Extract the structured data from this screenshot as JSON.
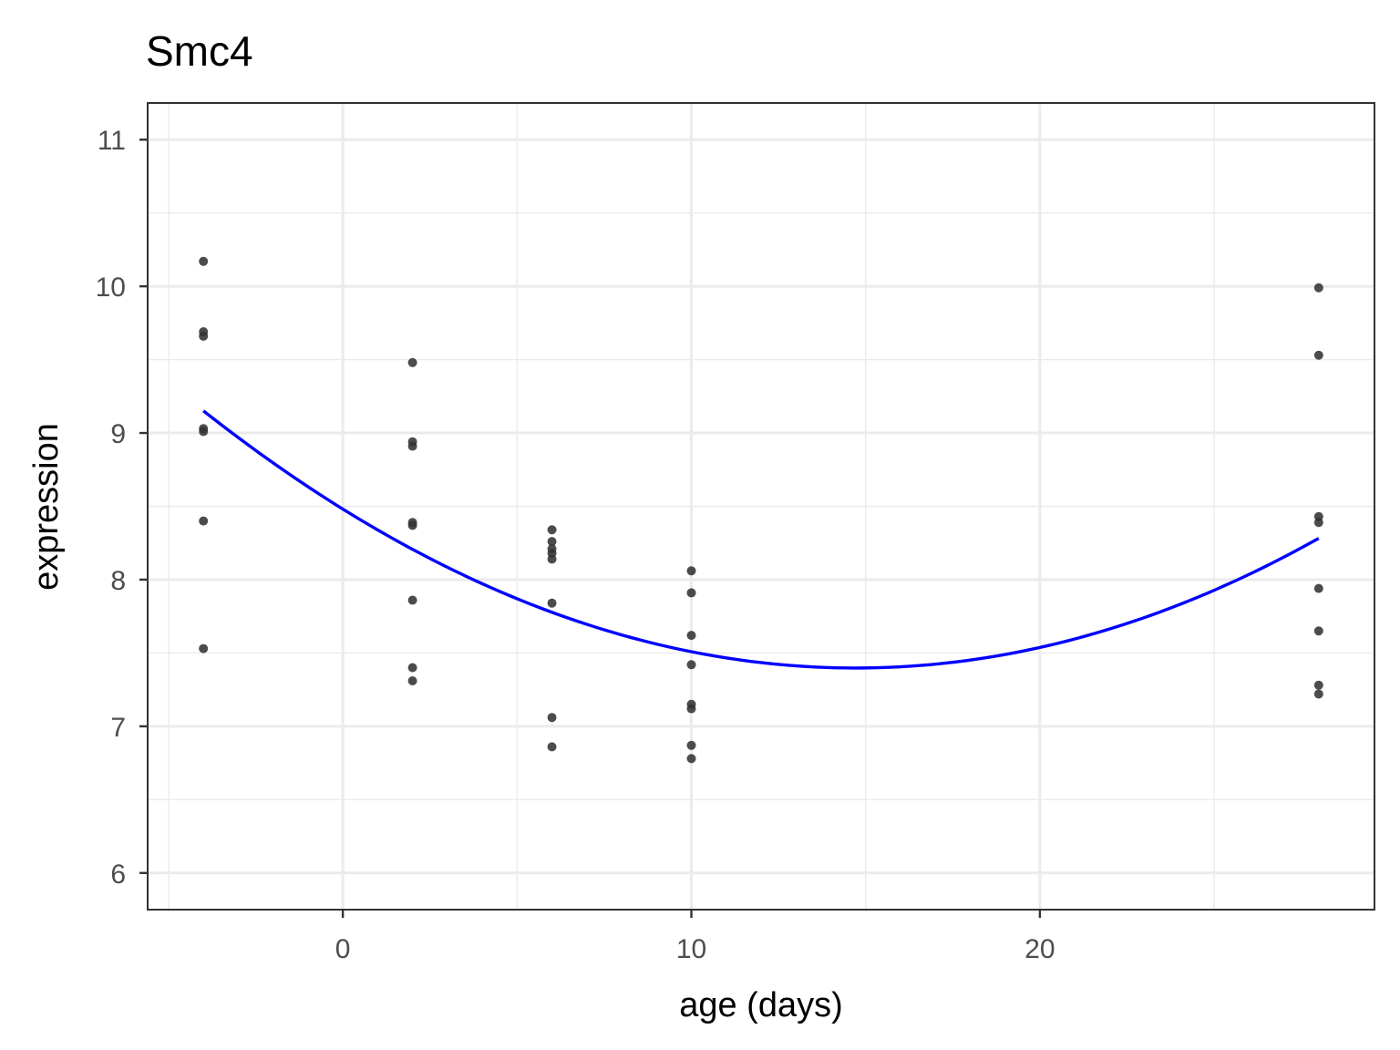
{
  "chart_data": {
    "type": "scatter",
    "title": "Smc4",
    "xlabel": "age (days)",
    "ylabel": "expression",
    "xlim": [
      -5.6,
      29.6
    ],
    "ylim": [
      5.75,
      11.25
    ],
    "x_ticks": [
      0,
      10,
      20
    ],
    "x_tick_labels": [
      "0",
      "10",
      "20"
    ],
    "y_ticks": [
      6,
      7,
      8,
      9,
      10,
      11
    ],
    "y_tick_labels": [
      "6",
      "7",
      "8",
      "9",
      "10",
      "11"
    ],
    "grid": true,
    "legend": "none",
    "colors": {
      "points": "#333333",
      "fit": "#0000ff",
      "grid": "#ebebeb",
      "panel_border": "#333333"
    },
    "series": [
      {
        "kind": "points",
        "points": [
          [
            -4,
            10.17
          ],
          [
            -4,
            9.69
          ],
          [
            -4,
            9.66
          ],
          [
            -4,
            9.03
          ],
          [
            -4,
            9.01
          ],
          [
            -4,
            8.4
          ],
          [
            -4,
            7.53
          ],
          [
            2,
            9.48
          ],
          [
            2,
            8.94
          ],
          [
            2,
            8.91
          ],
          [
            2,
            8.39
          ],
          [
            2,
            8.37
          ],
          [
            2,
            7.86
          ],
          [
            2,
            7.4
          ],
          [
            2,
            7.31
          ],
          [
            6,
            8.34
          ],
          [
            6,
            8.26
          ],
          [
            6,
            8.21
          ],
          [
            6,
            8.18
          ],
          [
            6,
            8.14
          ],
          [
            6,
            7.84
          ],
          [
            6,
            7.06
          ],
          [
            6,
            6.86
          ],
          [
            10,
            8.06
          ],
          [
            10,
            7.91
          ],
          [
            10,
            7.62
          ],
          [
            10,
            7.42
          ],
          [
            10,
            7.15
          ],
          [
            10,
            7.12
          ],
          [
            10,
            6.87
          ],
          [
            10,
            6.78
          ],
          [
            28,
            9.99
          ],
          [
            28,
            9.53
          ],
          [
            28,
            8.43
          ],
          [
            28,
            8.39
          ],
          [
            28,
            7.94
          ],
          [
            28,
            7.65
          ],
          [
            28,
            7.28
          ],
          [
            28,
            7.22
          ]
        ]
      },
      {
        "kind": "quadratic-fit",
        "x_range": [
          -4,
          28
        ],
        "fit_points": [
          [
            -4,
            9.15
          ],
          [
            0,
            8.49
          ],
          [
            4,
            7.96
          ],
          [
            10,
            7.51
          ],
          [
            15,
            7.4
          ],
          [
            20,
            7.54
          ],
          [
            28,
            8.28
          ]
        ]
      }
    ]
  }
}
